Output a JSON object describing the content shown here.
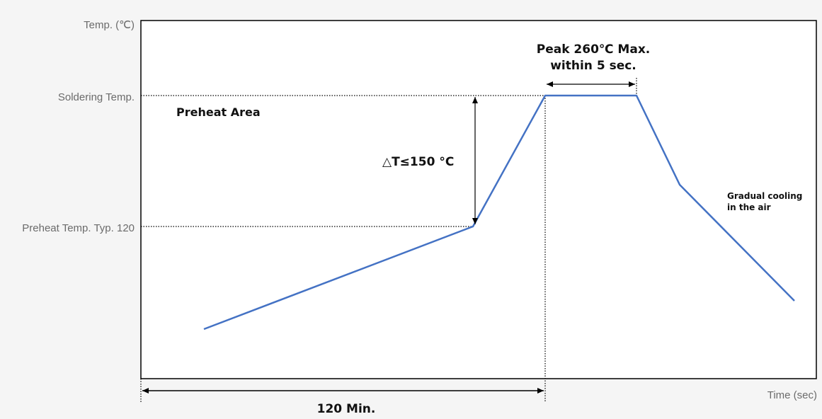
{
  "diagram": {
    "y_axis_title": "Temp. (℃)",
    "x_axis_title": "Time (sec)",
    "y_labels": {
      "soldering": "Soldering Temp.",
      "preheat": "Preheat Temp. Typ. 120"
    },
    "annotations": {
      "preheat_area": "Preheat Area",
      "delta_t": "△T≤150 °C",
      "peak_line1": "Peak 260℃ Max.",
      "peak_line2": "within 5 sec.",
      "cooling_line1": "Gradual cooling",
      "cooling_line2": "in the air",
      "duration": "120 Min."
    },
    "colors": {
      "profile_line": "#4472c4",
      "frame": "#000000",
      "background": "#f5f5f5",
      "plot_background": "#ffffff"
    }
  }
}
